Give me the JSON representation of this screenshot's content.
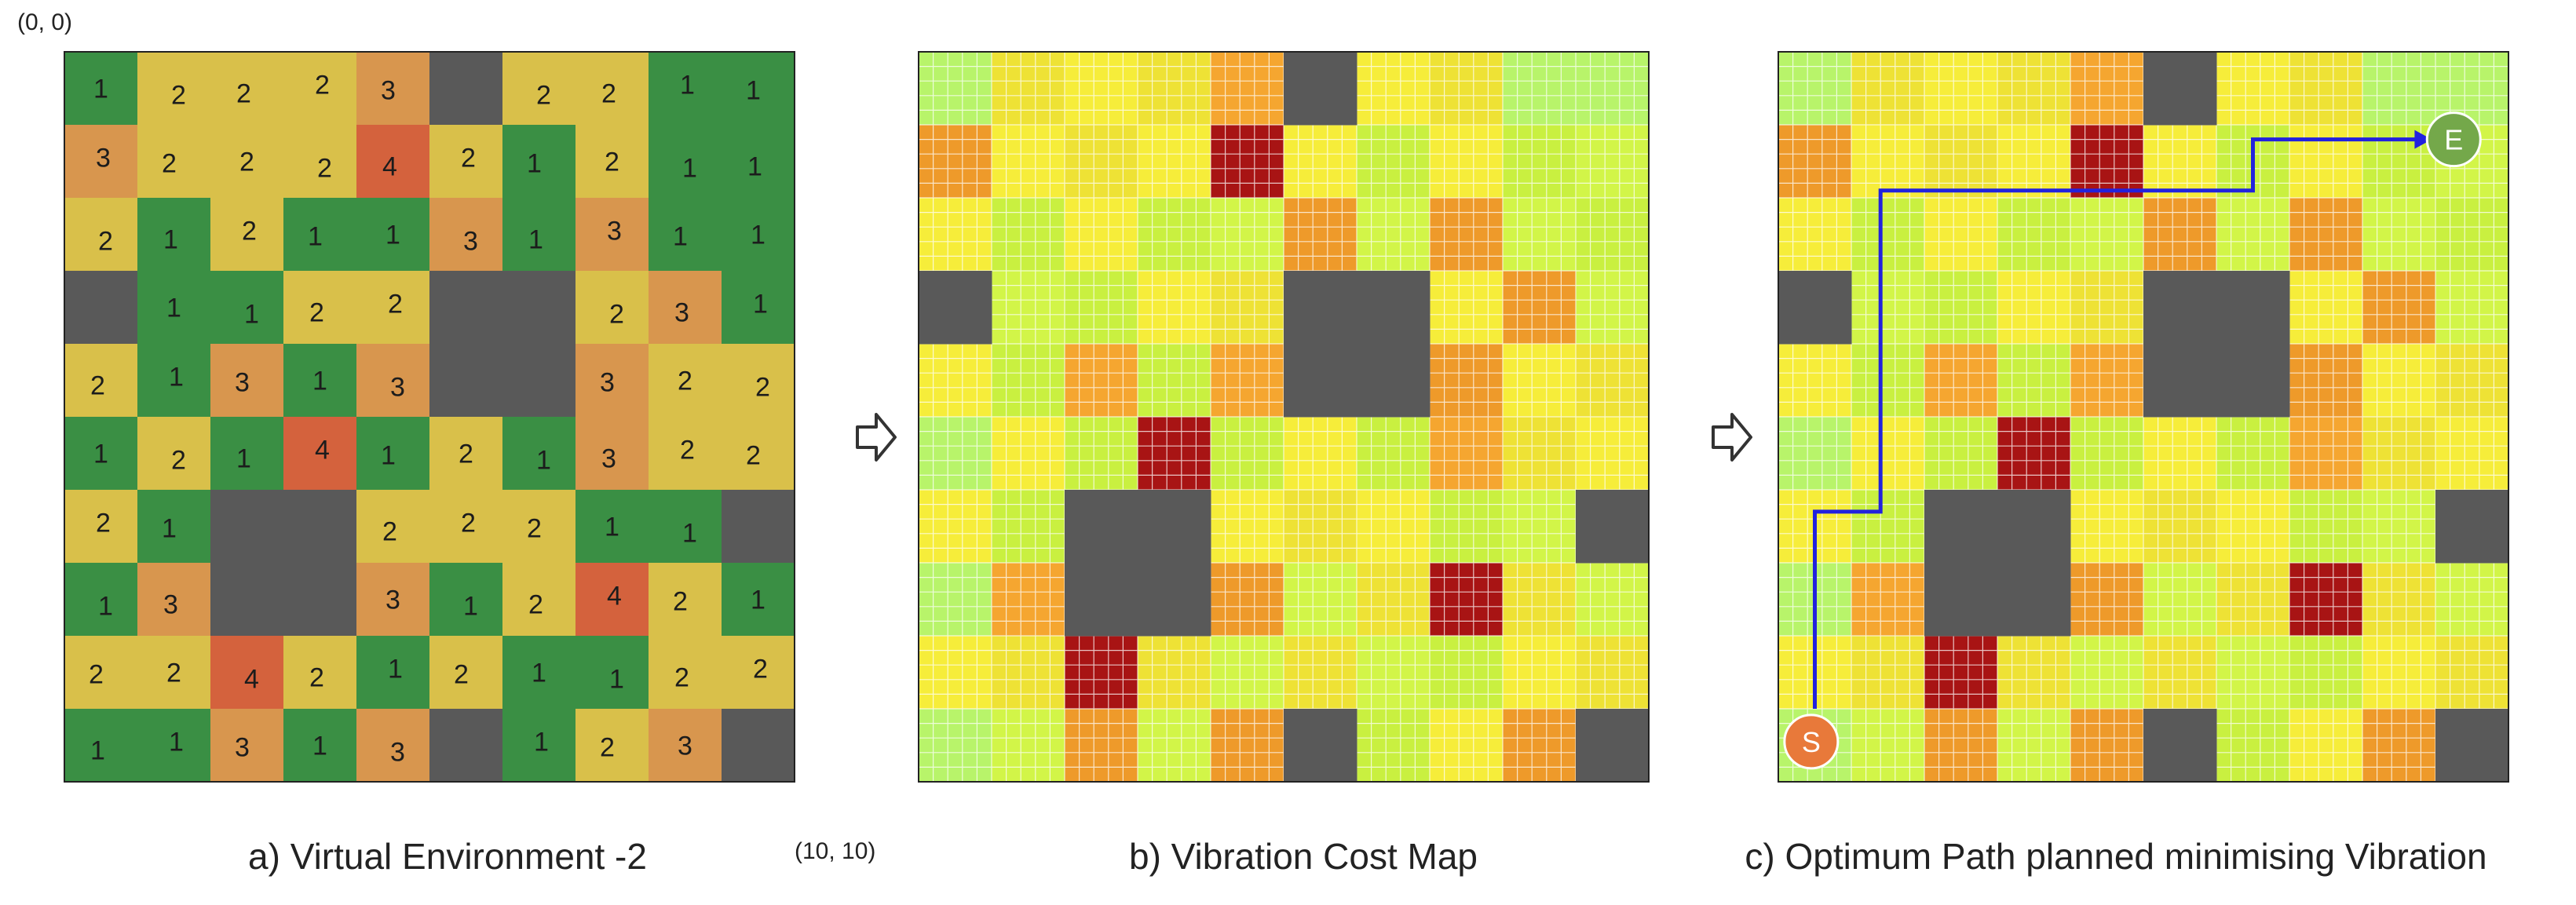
{
  "labels": {
    "origin": "(0, 0)",
    "end": "(10, 10)",
    "caption_a": "a) Virtual Environment -2",
    "caption_b": "b) Vibration Cost Map",
    "caption_c": "c) Optimum Path planned minimising Vibration",
    "start_marker": "S",
    "end_marker": "E"
  },
  "grid": [
    [
      1,
      2,
      2,
      2,
      3,
      0,
      2,
      2,
      1,
      1
    ],
    [
      3,
      2,
      2,
      2,
      4,
      2,
      1,
      2,
      1,
      1
    ],
    [
      2,
      1,
      2,
      1,
      1,
      3,
      1,
      3,
      1,
      1
    ],
    [
      0,
      1,
      1,
      2,
      2,
      0,
      0,
      2,
      3,
      1
    ],
    [
      2,
      1,
      3,
      1,
      3,
      0,
      0,
      3,
      2,
      2
    ],
    [
      1,
      2,
      1,
      4,
      1,
      2,
      1,
      3,
      2,
      2
    ],
    [
      2,
      1,
      0,
      0,
      2,
      2,
      2,
      1,
      1,
      0
    ],
    [
      1,
      3,
      0,
      0,
      3,
      1,
      2,
      4,
      2,
      1
    ],
    [
      2,
      2,
      4,
      2,
      1,
      2,
      1,
      1,
      2,
      2
    ],
    [
      1,
      1,
      3,
      1,
      3,
      0,
      1,
      2,
      3,
      0
    ]
  ],
  "path": [
    [
      0.5,
      9
    ],
    [
      0.5,
      6.3
    ],
    [
      1.4,
      6.3
    ],
    [
      1.4,
      1.9
    ],
    [
      6.5,
      1.9
    ],
    [
      6.5,
      1.2
    ],
    [
      8.8,
      1.2
    ]
  ],
  "colors": {
    "obstacle": "#595959",
    "level_1": "#3a8f44",
    "level_2": "#d9c04a",
    "level_3": "#d8964e",
    "level_4": "#d4623d",
    "path": "#2222dd",
    "start": "#e8793a",
    "end": "#74a84a"
  }
}
